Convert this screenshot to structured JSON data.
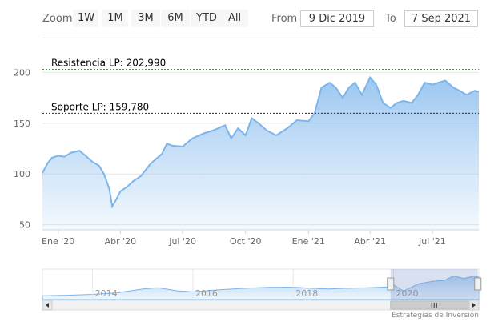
{
  "toolbar": {
    "zoom_label": "Zoom",
    "buttons": [
      "1W",
      "1M",
      "3M",
      "6M",
      "YTD",
      "All"
    ],
    "from_label": "From",
    "from_value": "9 Dic 2019",
    "to_label": "To",
    "to_value": "7 Sep 2021"
  },
  "chart_data": {
    "type": "area",
    "title": "",
    "xlabel": "",
    "ylabel": "",
    "ylim": [
      45,
      220
    ],
    "y_ticks": [
      50,
      100,
      150,
      200
    ],
    "x_ticks": [
      {
        "label": "Ene '20",
        "date": "2020-01-01"
      },
      {
        "label": "Abr '20",
        "date": "2020-04-01"
      },
      {
        "label": "Jul '20",
        "date": "2020-07-01"
      },
      {
        "label": "Oct '20",
        "date": "2020-10-01"
      },
      {
        "label": "Ene '21",
        "date": "2021-01-01"
      },
      {
        "label": "Abr '21",
        "date": "2021-04-01"
      },
      {
        "label": "Jul '21",
        "date": "2021-07-01"
      }
    ],
    "x_range": [
      "2019-12-09",
      "2021-09-07"
    ],
    "grid": "horizontal",
    "series_color": "#7cb5ec",
    "series": [
      {
        "name": "",
        "x": [
          "2019-12-09",
          "2019-12-16",
          "2019-12-23",
          "2020-01-01",
          "2020-01-10",
          "2020-01-20",
          "2020-02-01",
          "2020-02-10",
          "2020-02-20",
          "2020-03-01",
          "2020-03-08",
          "2020-03-16",
          "2020-03-20",
          "2020-03-26",
          "2020-04-01",
          "2020-04-10",
          "2020-04-20",
          "2020-05-01",
          "2020-05-15",
          "2020-06-01",
          "2020-06-08",
          "2020-06-15",
          "2020-07-01",
          "2020-07-15",
          "2020-08-01",
          "2020-08-15",
          "2020-09-01",
          "2020-09-10",
          "2020-09-20",
          "2020-10-01",
          "2020-10-10",
          "2020-10-20",
          "2020-11-01",
          "2020-11-15",
          "2020-12-01",
          "2020-12-15",
          "2021-01-01",
          "2021-01-10",
          "2021-01-20",
          "2021-02-01",
          "2021-02-10",
          "2021-02-20",
          "2021-03-01",
          "2021-03-10",
          "2021-03-20",
          "2021-04-01",
          "2021-04-10",
          "2021-04-20",
          "2021-05-01",
          "2021-05-10",
          "2021-05-20",
          "2021-06-01",
          "2021-06-10",
          "2021-06-20",
          "2021-07-01",
          "2021-07-10",
          "2021-07-20",
          "2021-08-01",
          "2021-08-10",
          "2021-08-20",
          "2021-09-01",
          "2021-09-07"
        ],
        "values": [
          101,
          110,
          116,
          118,
          117,
          121,
          123,
          118,
          112,
          108,
          100,
          85,
          68,
          75,
          83,
          87,
          93,
          98,
          110,
          120,
          130,
          128,
          127,
          135,
          140,
          143,
          148,
          135,
          145,
          138,
          155,
          150,
          143,
          138,
          145,
          153,
          152,
          160,
          185,
          190,
          185,
          175,
          185,
          190,
          178,
          195,
          188,
          170,
          165,
          170,
          172,
          170,
          178,
          190,
          188,
          190,
          192,
          185,
          182,
          178,
          182,
          181
        ]
      }
    ],
    "plot_lines": [
      {
        "label": "Resistencia LP: 202,990",
        "value": 202.99,
        "color": "#2e7d32"
      },
      {
        "label": "Soporte LP: 159,780",
        "value": 159.78,
        "color": "#8b0000"
      }
    ]
  },
  "navigator": {
    "year_labels": [
      "2014",
      "2016",
      "2018",
      "2020"
    ],
    "series": [
      {
        "year": 2013.0,
        "value": 30
      },
      {
        "year": 2013.5,
        "value": 35
      },
      {
        "year": 2014.0,
        "value": 42
      },
      {
        "year": 2014.5,
        "value": 55
      },
      {
        "year": 2015.0,
        "value": 85
      },
      {
        "year": 2015.3,
        "value": 95
      },
      {
        "year": 2015.7,
        "value": 70
      },
      {
        "year": 2016.0,
        "value": 62
      },
      {
        "year": 2016.5,
        "value": 78
      },
      {
        "year": 2017.0,
        "value": 90
      },
      {
        "year": 2017.5,
        "value": 98
      },
      {
        "year": 2018.0,
        "value": 100
      },
      {
        "year": 2018.3,
        "value": 92
      },
      {
        "year": 2018.7,
        "value": 85
      },
      {
        "year": 2019.0,
        "value": 90
      },
      {
        "year": 2019.5,
        "value": 95
      },
      {
        "year": 2019.9,
        "value": 101
      },
      {
        "year": 2020.0,
        "value": 118
      },
      {
        "year": 2020.2,
        "value": 68
      },
      {
        "year": 2020.5,
        "value": 127
      },
      {
        "year": 2020.8,
        "value": 148
      },
      {
        "year": 2021.0,
        "value": 152
      },
      {
        "year": 2021.2,
        "value": 190
      },
      {
        "year": 2021.4,
        "value": 170
      },
      {
        "year": 2021.6,
        "value": 188
      },
      {
        "year": 2021.7,
        "value": 181
      }
    ],
    "range": [
      2013.0,
      2021.7
    ],
    "selected": [
      2019.94,
      2021.68
    ]
  },
  "credits": "Estrategias de Inversión"
}
